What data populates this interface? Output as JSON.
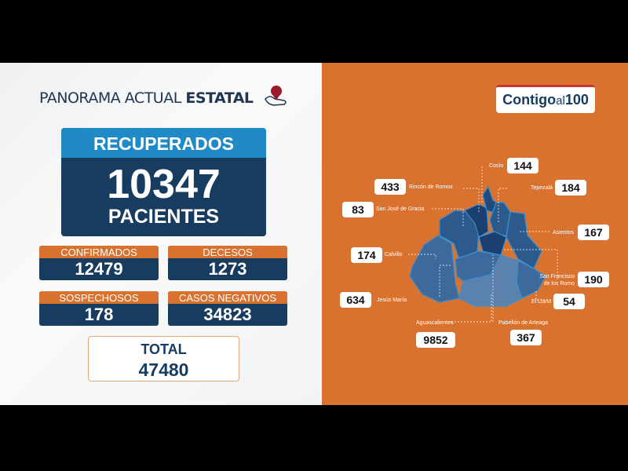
{
  "header": {
    "title_regular": "PANORAMA ACTUAL ",
    "title_bold": "ESTATAL"
  },
  "recuperados": {
    "label": "RECUPERADOS",
    "value": "10347",
    "unit": "PACIENTES"
  },
  "stats": [
    {
      "label": "CONFIRMADOS",
      "value": "12479"
    },
    {
      "label": "DECESOS",
      "value": "1273"
    },
    {
      "label": "SOSPECHOSOS",
      "value": "178"
    },
    {
      "label": "CASOS NEGATIVOS",
      "value": "34823"
    }
  ],
  "total": {
    "label": "TOTAL",
    "value": "47480"
  },
  "logo": {
    "text_bold": "Contigo",
    "text_small": "al",
    "text_num": "100"
  },
  "municipios": [
    {
      "name": "Cosío",
      "value": "144"
    },
    {
      "name": "Rincón de Romos",
      "value": "433"
    },
    {
      "name": "Tepezalá",
      "value": "184"
    },
    {
      "name": "San José de Gracia",
      "value": "83"
    },
    {
      "name": "Asientos",
      "value": "167"
    },
    {
      "name": "Calvillo",
      "value": "174"
    },
    {
      "name": "San Francisco de los Romo",
      "value": "190"
    },
    {
      "name": "Jesús María",
      "value": "634"
    },
    {
      "name": "El Llano",
      "value": "54"
    },
    {
      "name": "Aguascalientes",
      "value": "9852"
    },
    {
      "name": "Pabellón de Arteaga",
      "value": "367"
    }
  ],
  "colors": {
    "orange": "#d9722e",
    "navy": "#173c60",
    "blue": "#1f8ac6"
  }
}
